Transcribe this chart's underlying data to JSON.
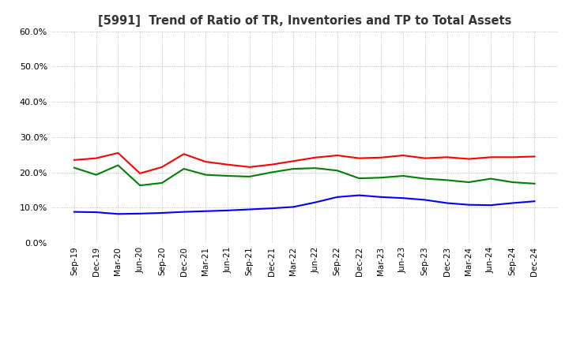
{
  "title": "[5991]  Trend of Ratio of TR, Inventories and TP to Total Assets",
  "x_labels": [
    "Sep-19",
    "Dec-19",
    "Mar-20",
    "Jun-20",
    "Sep-20",
    "Dec-20",
    "Mar-21",
    "Jun-21",
    "Sep-21",
    "Dec-21",
    "Mar-22",
    "Jun-22",
    "Sep-22",
    "Dec-22",
    "Mar-23",
    "Jun-23",
    "Sep-23",
    "Dec-23",
    "Mar-24",
    "Jun-24",
    "Sep-24",
    "Dec-24"
  ],
  "trade_receivables": [
    0.235,
    0.24,
    0.255,
    0.197,
    0.215,
    0.252,
    0.23,
    0.222,
    0.215,
    0.222,
    0.232,
    0.242,
    0.248,
    0.24,
    0.242,
    0.248,
    0.24,
    0.243,
    0.238,
    0.243,
    0.243,
    0.245
  ],
  "inventories": [
    0.088,
    0.087,
    0.082,
    0.083,
    0.085,
    0.088,
    0.09,
    0.092,
    0.095,
    0.098,
    0.102,
    0.115,
    0.13,
    0.135,
    0.13,
    0.127,
    0.122,
    0.113,
    0.108,
    0.107,
    0.113,
    0.118
  ],
  "trade_payables": [
    0.213,
    0.193,
    0.22,
    0.163,
    0.17,
    0.21,
    0.193,
    0.19,
    0.188,
    0.2,
    0.21,
    0.212,
    0.205,
    0.183,
    0.185,
    0.19,
    0.182,
    0.178,
    0.172,
    0.182,
    0.172,
    0.168
  ],
  "tr_color": "#ff0000",
  "inv_color": "#0000ff",
  "tp_color": "#008000",
  "ylim": [
    0.0,
    0.6
  ],
  "yticks": [
    0.0,
    0.1,
    0.2,
    0.3,
    0.4,
    0.5,
    0.6
  ],
  "background_color": "#ffffff",
  "grid_color": "#aaaaaa"
}
